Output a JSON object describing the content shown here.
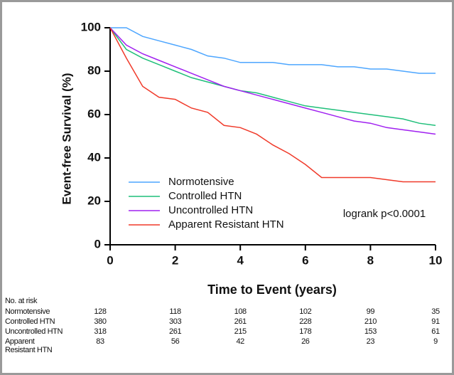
{
  "chart_data": {
    "type": "line",
    "step": true,
    "ylabel": "Event-free Survival (%)",
    "xlabel": "Time to Event (years)",
    "x": [
      0,
      0.5,
      1,
      1.5,
      2,
      2.5,
      3,
      3.5,
      4,
      4.5,
      5,
      5.5,
      6,
      6.5,
      7,
      7.5,
      8,
      8.5,
      9,
      9.5,
      10
    ],
    "series": [
      {
        "name": "Normotensive",
        "color": "#4da6ff",
        "values": [
          100,
          100,
          96,
          94,
          92,
          90,
          87,
          86,
          84,
          84,
          84,
          83,
          83,
          83,
          82,
          82,
          81,
          81,
          80,
          79,
          79
        ]
      },
      {
        "name": "Controlled HTN",
        "color": "#1fbf7a",
        "values": [
          100,
          90,
          86,
          83,
          80,
          77,
          75,
          73,
          71,
          70,
          68,
          66,
          64,
          63,
          62,
          61,
          60,
          59,
          58,
          56,
          55
        ]
      },
      {
        "name": "Uncontrolled HTN",
        "color": "#a020f0",
        "values": [
          100,
          92,
          88,
          85,
          82,
          79,
          76,
          73,
          71,
          69,
          67,
          65,
          63,
          61,
          59,
          57,
          56,
          54,
          53,
          52,
          51
        ]
      },
      {
        "name": "Apparent Resistant HTN",
        "color": "#f03a2a",
        "values": [
          100,
          86,
          73,
          68,
          67,
          63,
          61,
          55,
          54,
          51,
          46,
          42,
          37,
          31,
          31,
          31,
          31,
          30,
          29,
          29,
          29
        ]
      }
    ],
    "xlim": [
      0,
      10
    ],
    "xticks": [
      0,
      2,
      4,
      6,
      8,
      10
    ],
    "ylim": [
      0,
      100
    ],
    "yticks": [
      0,
      20,
      40,
      60,
      80,
      100
    ],
    "annotation": "logrank p<0.0001",
    "legend": "lower-left"
  },
  "risk_table": {
    "title": "No. at risk",
    "rows": [
      {
        "label": "Normotensive",
        "values": [
          128,
          118,
          108,
          102,
          99,
          35
        ]
      },
      {
        "label": "Controlled HTN",
        "values": [
          380,
          303,
          261,
          228,
          210,
          91
        ]
      },
      {
        "label": "Uncontrolled HTN",
        "values": [
          318,
          261,
          215,
          178,
          153,
          61
        ]
      },
      {
        "label": "Apparent Resistant HTN",
        "values": [
          83,
          56,
          42,
          26,
          23,
          9
        ]
      }
    ]
  }
}
